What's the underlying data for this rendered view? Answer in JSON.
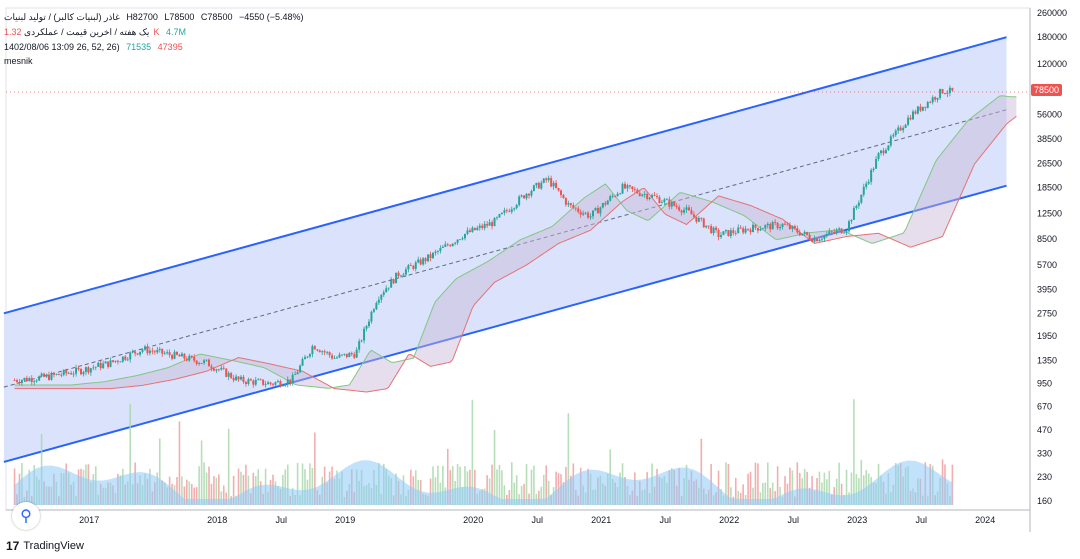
{
  "header": {
    "title": "غاذر (لبنیات کالبر) / تولید لبنیات",
    "ohlc": [
      "H82700",
      "L78500",
      "C78500",
      "−4550 (−5.48%)"
    ],
    "subtitle": "یک هفته / اخرین قیمت / عملکردی",
    "vol_values": [
      "1.32K",
      "4.7M"
    ],
    "indicator_label": "1402/08/06 13:09 26, 52, 26)",
    "indicator_values": [
      "71535",
      "47395"
    ],
    "author": "mesnik"
  },
  "price_label": "78500",
  "branding": {
    "logo_text": "TradingView",
    "logo_mark": "17"
  },
  "colors": {
    "channel_fill": "#d6e0fb",
    "channel_line": "#2962ff",
    "cloud_green": "#81c784",
    "cloud_red": "#e57373",
    "candle_up": "#26a69a",
    "candle_down": "#ef5350",
    "volume": "#90caf9",
    "price_tag": "#ef5350"
  },
  "chart_data": {
    "type": "line",
    "scale": "log",
    "y_axis_ticks": [
      "260000",
      "180000",
      "120000",
      "56000",
      "38500",
      "26500",
      "18500",
      "12500",
      "8500",
      "5700",
      "3950",
      "2750",
      "1950",
      "1350",
      "950",
      "670",
      "470",
      "330",
      "230",
      "160"
    ],
    "x_axis_ticks": [
      "J",
      "2017",
      "2018",
      "Jul",
      "2019",
      "2020",
      "Jul",
      "2021",
      "Jul",
      "2022",
      "Jul",
      "2023",
      "Jul",
      "2024"
    ],
    "price_series": [
      {
        "t": "2016-06",
        "p": 1000
      },
      {
        "t": "2016-09",
        "p": 1050
      },
      {
        "t": "2016-12",
        "p": 1150
      },
      {
        "t": "2017-03",
        "p": 1300
      },
      {
        "t": "2017-06",
        "p": 1600
      },
      {
        "t": "2017-09",
        "p": 1450
      },
      {
        "t": "2017-12",
        "p": 1300
      },
      {
        "t": "2018-03",
        "p": 1000
      },
      {
        "t": "2018-06",
        "p": 950
      },
      {
        "t": "2018-08",
        "p": 1000
      },
      {
        "t": "2018-10",
        "p": 1700
      },
      {
        "t": "2018-12",
        "p": 1400
      },
      {
        "t": "2019-02",
        "p": 1500
      },
      {
        "t": "2019-04",
        "p": 3500
      },
      {
        "t": "2019-06",
        "p": 5000
      },
      {
        "t": "2019-09",
        "p": 6500
      },
      {
        "t": "2019-12",
        "p": 9000
      },
      {
        "t": "2020-03",
        "p": 11000
      },
      {
        "t": "2020-06",
        "p": 17000
      },
      {
        "t": "2020-08",
        "p": 21000
      },
      {
        "t": "2020-10",
        "p": 14000
      },
      {
        "t": "2020-12",
        "p": 12000
      },
      {
        "t": "2021-03",
        "p": 18500
      },
      {
        "t": "2021-06",
        "p": 16000
      },
      {
        "t": "2021-09",
        "p": 13000
      },
      {
        "t": "2021-12",
        "p": 9000
      },
      {
        "t": "2022-03",
        "p": 10000
      },
      {
        "t": "2022-06",
        "p": 10500
      },
      {
        "t": "2022-09",
        "p": 8500
      },
      {
        "t": "2022-12",
        "p": 10000
      },
      {
        "t": "2023-03",
        "p": 30000
      },
      {
        "t": "2023-06",
        "p": 55000
      },
      {
        "t": "2023-09",
        "p": 80000
      },
      {
        "t": "2023-10",
        "p": 78500
      }
    ],
    "channel": {
      "upper": [
        {
          "t": "2016-05",
          "p": 2750
        },
        {
          "t": "2024-03",
          "p": 180000
        }
      ],
      "mid": [
        {
          "t": "2016-05",
          "p": 900
        },
        {
          "t": "2024-03",
          "p": 60000
        }
      ],
      "lower": [
        {
          "t": "2016-05",
          "p": 290
        },
        {
          "t": "2024-03",
          "p": 19000
        }
      ]
    },
    "last_price": 78500
  }
}
